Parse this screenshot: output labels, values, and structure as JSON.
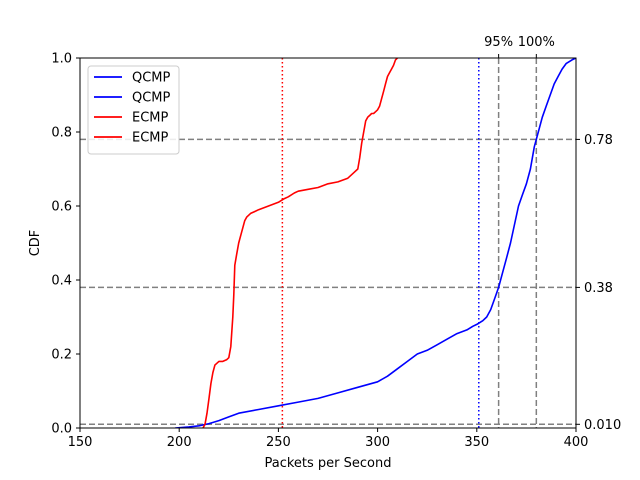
{
  "chart_data": {
    "type": "line",
    "title": "",
    "xlabel": "Packets per Second",
    "ylabel": "CDF",
    "xlim": [
      150,
      400
    ],
    "ylim": [
      0,
      1.0
    ],
    "xticks": [
      "150",
      "200",
      "250",
      "300",
      "350",
      "400"
    ],
    "yticks": [
      "0.0",
      "0.2",
      "0.4",
      "0.6",
      "0.8",
      "1.0"
    ],
    "grid": false,
    "legend_position": "upper-left",
    "legend": [
      "QCMP",
      "QCMP",
      "ECMP",
      "ECMP"
    ],
    "right_ticks": [
      {
        "y": 0.01,
        "label": "0.010"
      },
      {
        "y": 0.38,
        "label": "0.38"
      },
      {
        "y": 0.78,
        "label": "0.78"
      }
    ],
    "top_ticks": [
      {
        "x": 361,
        "label": "95%"
      },
      {
        "x": 380,
        "label": "100%"
      }
    ],
    "reference_lines": {
      "horizontal_dashed": [
        0.01,
        0.38,
        0.78
      ],
      "vertical_dashed": [
        361,
        380
      ],
      "vertical_dotted": [
        {
          "x": 252,
          "color": "#ff0000"
        },
        {
          "x": 351,
          "color": "#0000ff"
        }
      ]
    },
    "series": [
      {
        "name": "QCMP",
        "color": "#0000ff",
        "x": [
          198,
          205,
          210,
          215,
          220,
          225,
          230,
          240,
          250,
          260,
          270,
          280,
          290,
          300,
          305,
          310,
          315,
          320,
          325,
          330,
          335,
          340,
          345,
          348,
          350,
          353,
          355,
          357,
          359,
          361,
          363,
          365,
          367,
          369,
          371,
          373,
          375,
          377,
          379,
          381,
          383,
          385,
          387,
          389,
          391,
          393,
          395,
          398,
          400
        ],
        "y": [
          0.0,
          0.003,
          0.006,
          0.012,
          0.02,
          0.03,
          0.04,
          0.05,
          0.06,
          0.07,
          0.08,
          0.095,
          0.11,
          0.125,
          0.14,
          0.16,
          0.18,
          0.2,
          0.21,
          0.225,
          0.24,
          0.255,
          0.265,
          0.275,
          0.28,
          0.29,
          0.3,
          0.32,
          0.35,
          0.38,
          0.42,
          0.46,
          0.5,
          0.55,
          0.6,
          0.63,
          0.66,
          0.7,
          0.76,
          0.8,
          0.84,
          0.87,
          0.9,
          0.93,
          0.95,
          0.97,
          0.985,
          0.995,
          1.0
        ]
      },
      {
        "name": "ECMP",
        "color": "#ff0000",
        "x": [
          212,
          213,
          214,
          215,
          216,
          217,
          218,
          220,
          222,
          224,
          225,
          226,
          227,
          227.5,
          228,
          229,
          230,
          231,
          232,
          233,
          234,
          235,
          236,
          238,
          240,
          245,
          250,
          253,
          255,
          258,
          260,
          265,
          270,
          275,
          280,
          285,
          288,
          290,
          291,
          292,
          293,
          294,
          295,
          296,
          297,
          298,
          299,
          300,
          301,
          302,
          303,
          304,
          305,
          306,
          307,
          308,
          309,
          310
        ],
        "y": [
          0.0,
          0.01,
          0.04,
          0.08,
          0.12,
          0.15,
          0.17,
          0.18,
          0.18,
          0.185,
          0.19,
          0.22,
          0.3,
          0.36,
          0.44,
          0.47,
          0.5,
          0.52,
          0.54,
          0.56,
          0.57,
          0.575,
          0.58,
          0.585,
          0.59,
          0.6,
          0.61,
          0.62,
          0.625,
          0.635,
          0.64,
          0.645,
          0.65,
          0.66,
          0.665,
          0.675,
          0.69,
          0.7,
          0.73,
          0.77,
          0.8,
          0.83,
          0.84,
          0.845,
          0.85,
          0.85,
          0.855,
          0.86,
          0.87,
          0.89,
          0.91,
          0.93,
          0.95,
          0.96,
          0.97,
          0.98,
          0.995,
          1.0
        ]
      }
    ]
  }
}
